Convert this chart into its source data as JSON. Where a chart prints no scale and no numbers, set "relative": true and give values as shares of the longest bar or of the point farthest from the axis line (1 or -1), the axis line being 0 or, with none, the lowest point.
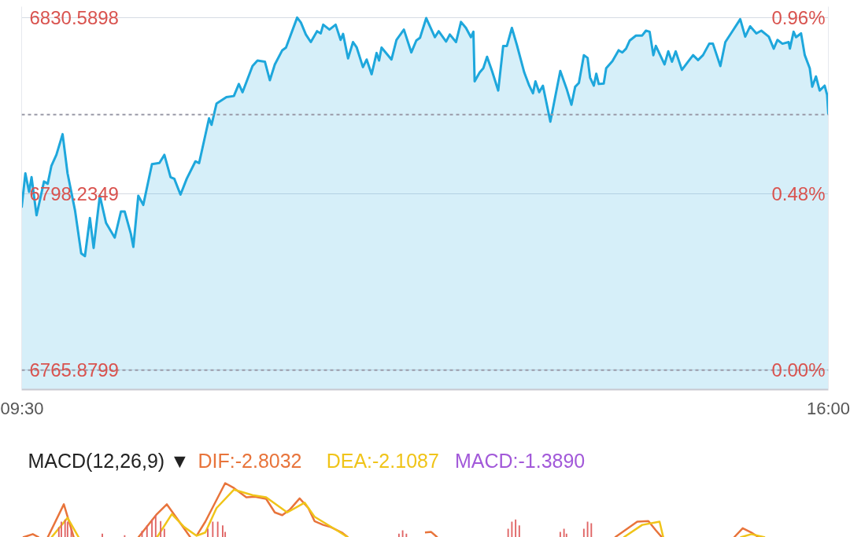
{
  "chart_data": [
    {
      "type": "area",
      "color": "#1ea7dc",
      "grid": "y",
      "xlim": [
        9.5,
        16
      ],
      "xticks": [
        {
          "value": 9.5,
          "label": "09:30"
        },
        {
          "value": 16,
          "label": "16:00"
        }
      ],
      "ylim": [
        6762.3,
        6832.6
      ],
      "yticks": [
        6765.8799,
        6798.2349,
        6830.5898
      ],
      "y2lim": [
        -0.053,
        0.986
      ],
      "y2ticks": [
        {
          "value": 0,
          "label": "0.00%"
        },
        {
          "value": 0.4782,
          "label": "0.48%"
        },
        {
          "value": 0.9564,
          "label": "0.96%"
        }
      ],
      "ref_lines": [
        {
          "axis": "y",
          "value": 6765.8799,
          "line_style": "dashed"
        },
        {
          "axis": "y",
          "value": 6812.8,
          "line_style": "dashed"
        }
      ],
      "x": [
        9.5,
        9.53,
        9.56,
        9.58,
        9.62,
        9.68,
        9.71,
        9.74,
        9.78,
        9.83,
        9.87,
        9.93,
        9.98,
        10.01,
        10.05,
        10.08,
        10.13,
        10.18,
        10.25,
        10.3,
        10.33,
        10.38,
        10.4,
        10.44,
        10.48,
        10.55,
        10.61,
        10.65,
        10.7,
        10.73,
        10.78,
        10.83,
        10.9,
        10.93,
        11.01,
        11.03,
        11.07,
        11.15,
        11.21,
        11.25,
        11.28,
        11.36,
        11.4,
        11.46,
        11.5,
        11.54,
        11.6,
        11.63,
        11.72,
        11.75,
        11.79,
        11.83,
        11.88,
        11.91,
        11.93,
        11.98,
        12.03,
        12.07,
        12.09,
        12.13,
        12.17,
        12.2,
        12.25,
        12.28,
        12.32,
        12.36,
        12.38,
        12.4,
        12.48,
        12.52,
        12.58,
        12.64,
        12.68,
        12.71,
        12.76,
        12.83,
        12.86,
        12.92,
        12.95,
        13.0,
        13.04,
        13.08,
        13.12,
        13.14,
        13.15,
        13.19,
        13.22,
        13.25,
        13.29,
        13.34,
        13.38,
        13.41,
        13.45,
        13.49,
        13.55,
        13.59,
        13.62,
        13.64,
        13.67,
        13.7,
        13.76,
        13.79,
        13.84,
        13.89,
        13.93,
        13.96,
        13.99,
        14.03,
        14.06,
        14.08,
        14.11,
        14.13,
        14.15,
        14.19,
        14.21,
        14.26,
        14.31,
        14.34,
        14.37,
        14.4,
        14.45,
        14.5,
        14.53,
        14.56,
        14.59,
        14.61,
        14.68,
        14.71,
        14.74,
        14.77,
        14.82,
        14.87,
        14.91,
        14.95,
        14.99,
        15.04,
        15.07,
        15.13,
        15.17,
        15.23,
        15.29,
        15.33,
        15.37,
        15.42,
        15.46,
        15.52,
        15.56,
        15.59,
        15.63,
        15.68,
        15.69,
        15.72,
        15.74,
        15.78,
        15.81,
        15.85,
        15.87,
        15.9,
        15.93,
        15.97,
        15.99,
        16.0
      ],
      "values": [
        6795.7,
        6802.0,
        6798.6,
        6801.3,
        6794.3,
        6800.5,
        6800.1,
        6803.4,
        6805.4,
        6809.2,
        6802.0,
        6795.2,
        6787.3,
        6786.8,
        6793.8,
        6788.3,
        6797.9,
        6792.9,
        6790.2,
        6795.0,
        6795.0,
        6790.9,
        6788.5,
        6797.9,
        6796.2,
        6803.7,
        6803.9,
        6805.4,
        6801.3,
        6801.0,
        6798.1,
        6801.0,
        6804.2,
        6803.9,
        6812.1,
        6810.9,
        6814.8,
        6816.0,
        6816.2,
        6818.4,
        6816.9,
        6821.7,
        6822.7,
        6822.5,
        6819.1,
        6822.0,
        6824.6,
        6825.1,
        6830.6,
        6829.7,
        6827.5,
        6826.1,
        6828.1,
        6827.7,
        6829.3,
        6828.4,
        6829.3,
        6826.5,
        6827.6,
        6823.1,
        6826.1,
        6825.1,
        6821.5,
        6822.9,
        6820.2,
        6824.1,
        6822.7,
        6825.1,
        6822.9,
        6826.5,
        6828.4,
        6824.2,
        6826.4,
        6826.9,
        6830.5,
        6827.0,
        6828.1,
        6826.2,
        6827.5,
        6826.1,
        6829.8,
        6828.7,
        6827.0,
        6828.0,
        6818.9,
        6820.5,
        6821.3,
        6823.4,
        6820.8,
        6817.2,
        6825.4,
        6825.4,
        6828.7,
        6825.6,
        6820.5,
        6818.1,
        6816.7,
        6818.9,
        6816.9,
        6818.1,
        6811.5,
        6815.0,
        6820.8,
        6817.6,
        6814.6,
        6817.9,
        6818.6,
        6823.7,
        6823.2,
        6819.6,
        6818.1,
        6820.3,
        6818.4,
        6818.5,
        6821.3,
        6822.6,
        6824.6,
        6824.2,
        6824.9,
        6826.4,
        6827.3,
        6827.3,
        6828.2,
        6828.0,
        6823.7,
        6825.4,
        6822.0,
        6824.4,
        6822.5,
        6824.4,
        6821.0,
        6822.5,
        6823.7,
        6822.8,
        6823.7,
        6825.8,
        6825.8,
        6821.7,
        6826.1,
        6828.2,
        6830.3,
        6827.1,
        6829.0,
        6827.7,
        6828.2,
        6827.1,
        6824.9,
        6826.5,
        6825.8,
        6826.1,
        6824.9,
        6828.0,
        6827.0,
        6827.7,
        6823.7,
        6821.3,
        6817.9,
        6819.8,
        6817.2,
        6818.1,
        6816.4,
        6812.8
      ]
    },
    {
      "type": "line",
      "title": "MACD(12,26,9) ▼",
      "relative": true,
      "tick_labels": false,
      "xlim": [
        9.5,
        16
      ],
      "annotations": [
        "MACD:-1.3890"
      ],
      "series": [
        {
          "name": "DIF:-2.8032",
          "color": "#e8743b",
          "x": [
            9.51,
            9.59,
            9.64,
            9.67,
            9.71,
            9.84,
            9.92,
            10.2,
            10.44,
            10.59,
            10.67,
            10.77,
            10.86,
            10.88,
            10.91,
            10.98,
            11.14,
            11.21,
            11.31,
            11.38,
            11.47,
            11.54,
            11.6,
            11.66,
            11.74,
            11.81,
            11.86,
            11.93,
            11.99,
            12.08,
            12.13,
            12.5,
            12.75,
            12.8,
            12.85,
            13.5,
            14.28,
            14.46,
            14.55,
            14.61,
            14.66,
            15.0,
            15.24,
            15.31,
            15.38,
            15.44
          ],
          "values": [
            0,
            0.06,
            0,
            null,
            0,
            0.61,
            0,
            null,
            0,
            0.43,
            0.61,
            0.29,
            0,
            null,
            0.03,
            0.29,
            1,
            0.91,
            0.74,
            0.75,
            0.71,
            0.46,
            0.41,
            0.51,
            0.72,
            0.54,
            0.3,
            0.23,
            0.19,
            0.09,
            0,
            null,
            0.09,
            0.1,
            0,
            null,
            0,
            0.29,
            0.3,
            0.13,
            0,
            null,
            0,
            0.17,
            0.09,
            0
          ]
        },
        {
          "name": "DEA:-2.1087",
          "color": "#f0c419",
          "x": [
            9.74,
            9.87,
            9.96,
            10.3,
            10.59,
            10.71,
            10.81,
            10.91,
            10.98,
            11.07,
            11.21,
            11.36,
            11.47,
            11.64,
            11.78,
            11.86,
            12.04,
            12.13,
            13.2,
            14.35,
            14.5,
            14.64,
            14.67,
            15.0,
            15.29,
            15.38,
            15.49
          ],
          "values": [
            0,
            0.36,
            0,
            null,
            0,
            0.43,
            0.19,
            0.03,
            0.09,
            0.54,
            0.88,
            0.78,
            0.74,
            0.46,
            0.64,
            0.38,
            0.13,
            0,
            null,
            0,
            0.23,
            0.29,
            0,
            null,
            0,
            0.06,
            0
          ]
        },
        {
          "type": "bar",
          "color": "#e06666",
          "x": [
            9.8,
            9.82,
            9.85,
            9.87,
            9.9,
            10.15,
            10.33,
            10.47,
            10.51,
            10.55,
            10.58,
            10.62,
            10.65,
            11.0,
            11.04,
            11.08,
            11.12,
            11.14,
            12.54,
            12.57,
            12.6,
            13.42,
            13.45,
            13.48,
            13.51,
            13.84,
            13.87,
            13.89,
            14.03,
            14.06,
            14.09
          ],
          "values": [
            0.19,
            0.29,
            0.33,
            0.29,
            0.16,
            0.07,
            0.04,
            0.12,
            0.22,
            0.33,
            0.41,
            0.3,
            0.16,
            0.16,
            0.29,
            0.29,
            0.22,
            0.1,
            0.07,
            0.13,
            0.07,
            0.16,
            0.29,
            0.33,
            0.22,
            0.1,
            0.16,
            0.07,
            0.16,
            0.29,
            0.26
          ]
        }
      ]
    }
  ]
}
